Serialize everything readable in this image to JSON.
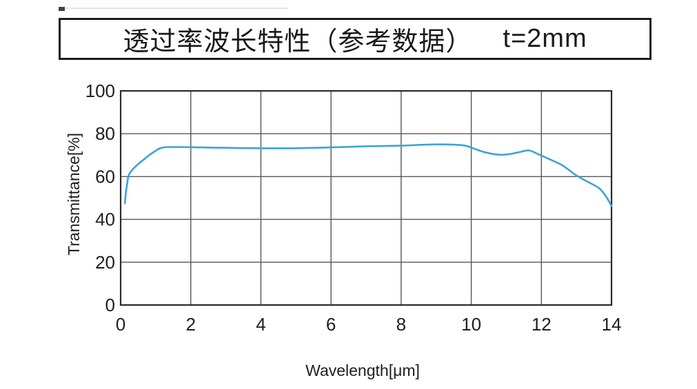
{
  "title": {
    "main": "透过率波长特性（参考数据）",
    "thickness": "t=2mm"
  },
  "chart_data": {
    "type": "line",
    "title": "透过率波长特性（参考数据） t=2mm",
    "xlabel": "Wavelength[μm]",
    "ylabel": "Transmittance[%]",
    "xlim": [
      0,
      14
    ],
    "ylim": [
      0,
      100
    ],
    "x_ticks": [
      "0",
      "2",
      "4",
      "6",
      "8",
      "10",
      "12",
      "14"
    ],
    "y_ticks": [
      "0",
      "20",
      "40",
      "60",
      "80",
      "100"
    ],
    "grid": true,
    "legend": false,
    "series": [
      {
        "name": "transmittance",
        "color": "#3BA3D8",
        "points": [
          [
            0.12,
            47.5
          ],
          [
            0.15,
            52.5
          ],
          [
            0.18,
            56.0
          ],
          [
            0.22,
            60.0
          ],
          [
            0.28,
            62.0
          ],
          [
            0.38,
            64.0
          ],
          [
            0.5,
            65.8
          ],
          [
            0.65,
            67.8
          ],
          [
            0.8,
            69.8
          ],
          [
            0.95,
            71.5
          ],
          [
            1.1,
            73.0
          ],
          [
            1.25,
            73.7
          ],
          [
            1.6,
            73.8
          ],
          [
            2.0,
            73.7
          ],
          [
            3.0,
            73.4
          ],
          [
            4.0,
            73.2
          ],
          [
            5.0,
            73.2
          ],
          [
            6.0,
            73.6
          ],
          [
            7.0,
            74.1
          ],
          [
            8.0,
            74.4
          ],
          [
            8.7,
            74.9
          ],
          [
            9.3,
            75.0
          ],
          [
            9.8,
            74.5
          ],
          [
            10.1,
            72.9
          ],
          [
            10.4,
            71.3
          ],
          [
            10.8,
            70.2
          ],
          [
            11.1,
            70.5
          ],
          [
            11.4,
            71.5
          ],
          [
            11.65,
            72.2
          ],
          [
            11.9,
            70.5
          ],
          [
            12.2,
            68.3
          ],
          [
            12.6,
            65.2
          ],
          [
            13.0,
            60.5
          ],
          [
            13.35,
            57.3
          ],
          [
            13.65,
            54.5
          ],
          [
            13.85,
            50.5
          ],
          [
            14.0,
            46.2
          ]
        ]
      }
    ]
  },
  "colors": {
    "curve": "#3BA3D8",
    "grid": "#555555",
    "plot_border": "#2b2b2b",
    "text": "#1f1f1f",
    "title_border": "#1c1c1c",
    "background": "#ffffff"
  }
}
